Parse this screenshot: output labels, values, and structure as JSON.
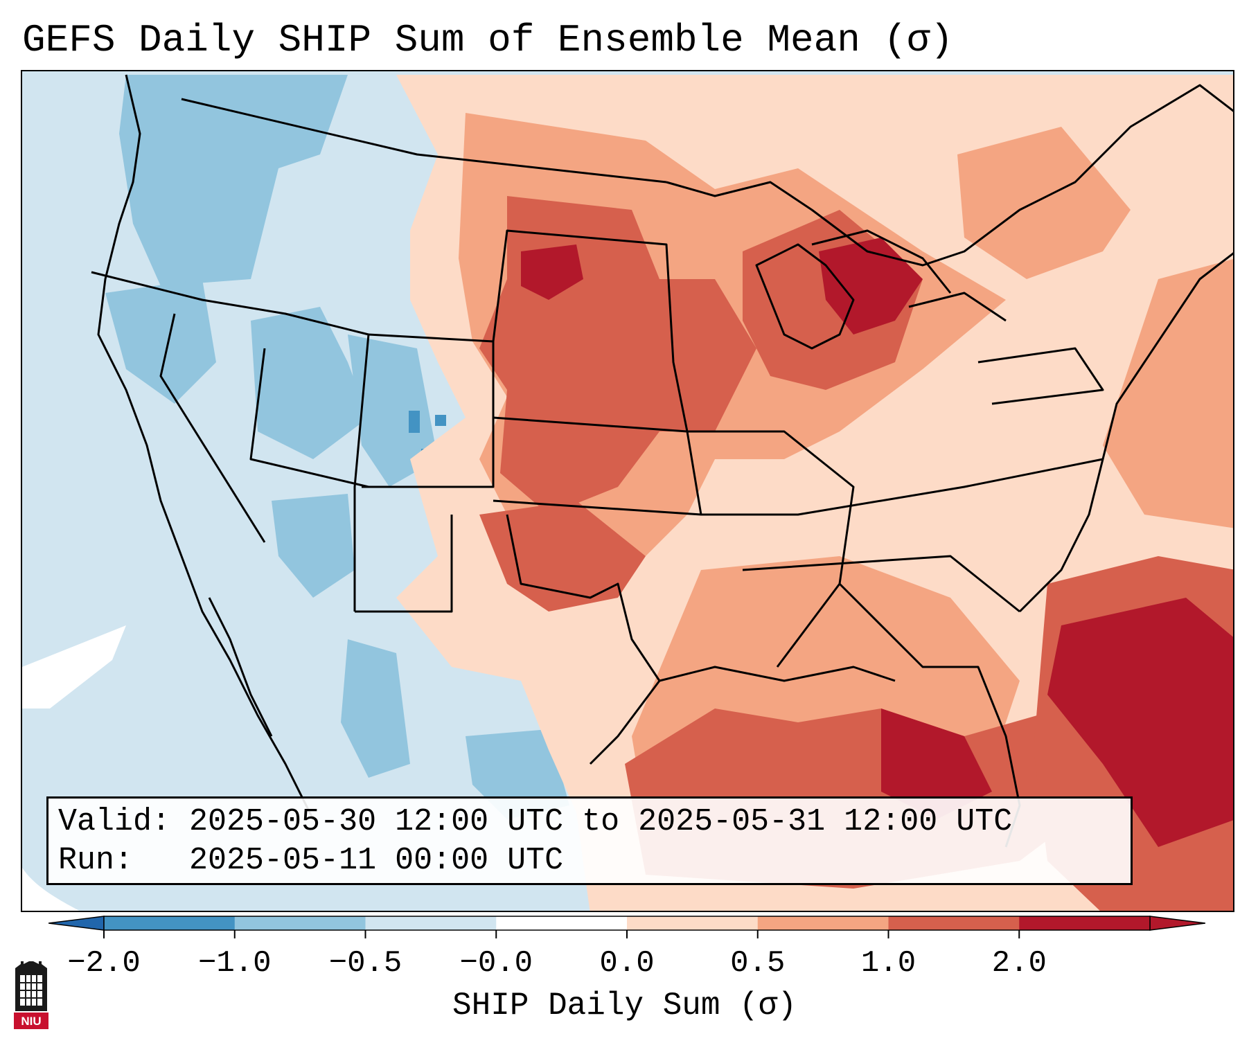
{
  "title": "GEFS Daily SHIP Sum of Ensemble Mean (σ)",
  "map": {
    "region": "Contiguous United States",
    "variable": "SHIP daily sum standardized anomaly"
  },
  "info_box": {
    "valid_line": "Valid: 2025-05-30 12:00 UTC to 2025-05-31 12:00 UTC",
    "run_line": "Run:   2025-05-11 00:00 UTC"
  },
  "colorbar": {
    "label": "SHIP Daily Sum (σ)",
    "ticks": [
      "−2.0",
      "−1.0",
      "−0.5",
      "−0.0",
      "0.0",
      "0.5",
      "1.0",
      "2.0"
    ],
    "colors": [
      "#4393c3",
      "#92c5de",
      "#d1e5f0",
      "#ffffff",
      "#fddbc7",
      "#f4a582",
      "#d6604d",
      "#b2182b"
    ],
    "extend": "both"
  },
  "logo": {
    "text": "NIU"
  }
}
